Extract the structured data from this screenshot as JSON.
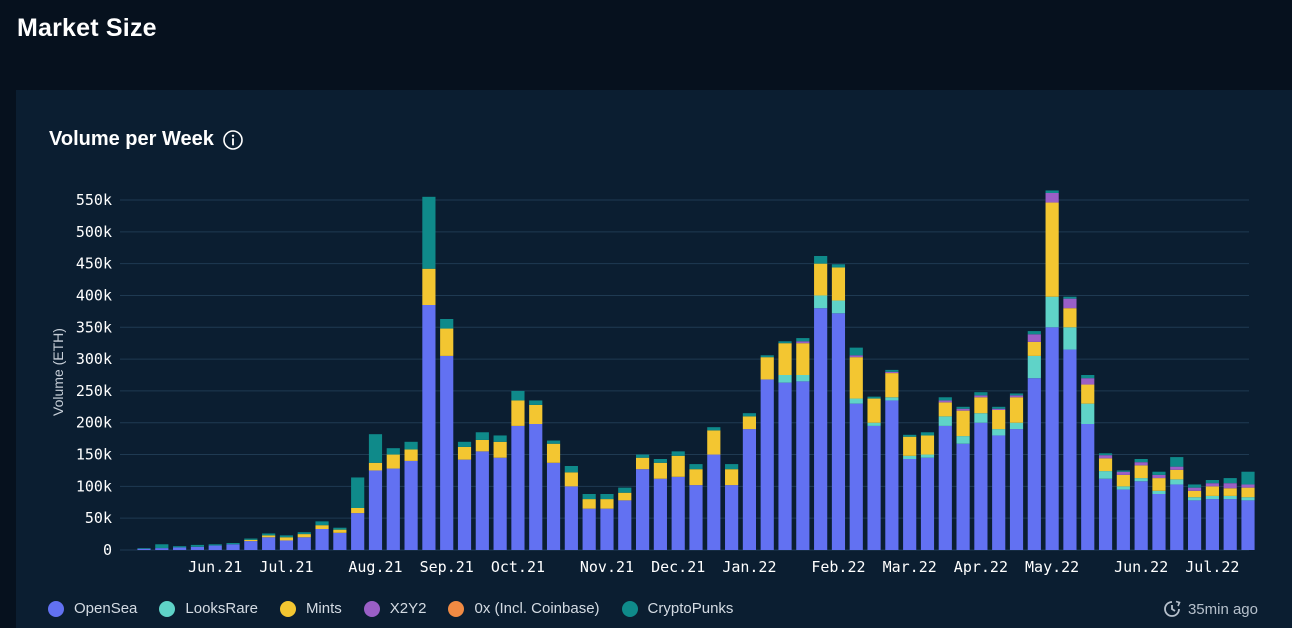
{
  "header": {
    "title": "Market Size"
  },
  "card": {
    "title": "Volume per Week",
    "updated": "35min ago"
  },
  "colors": {
    "background": "#06111e",
    "card": "#0b1e31",
    "grid": "#1f3a52"
  },
  "icons": {
    "info": "info-icon",
    "clock": "clock-refresh-icon"
  },
  "chart_data": {
    "type": "bar",
    "stacked": true,
    "title": "Volume per Week",
    "ylabel": "Volume (ETH)",
    "xlabel": "",
    "ylim": [
      0,
      560000
    ],
    "yticks": [
      0,
      50000,
      100000,
      150000,
      200000,
      250000,
      300000,
      350000,
      400000,
      450000,
      500000,
      550000
    ],
    "ytick_labels": [
      "0",
      "50k",
      "100k",
      "150k",
      "200k",
      "250k",
      "300k",
      "350k",
      "400k",
      "450k",
      "500k",
      "550k"
    ],
    "grid": true,
    "legend_position": "bottom-left",
    "month_labels": [
      {
        "label": "Jun.21",
        "week": 4
      },
      {
        "label": "Jul.21",
        "week": 8
      },
      {
        "label": "Aug.21",
        "week": 13
      },
      {
        "label": "Sep.21",
        "week": 17
      },
      {
        "label": "Oct.21",
        "week": 21
      },
      {
        "label": "Nov.21",
        "week": 26
      },
      {
        "label": "Dec.21",
        "week": 30
      },
      {
        "label": "Jan.22",
        "week": 34
      },
      {
        "label": "Feb.22",
        "week": 39
      },
      {
        "label": "Mar.22",
        "week": 43
      },
      {
        "label": "Apr.22",
        "week": 47
      },
      {
        "label": "May.22",
        "week": 51
      },
      {
        "label": "Jun.22",
        "week": 56
      },
      {
        "label": "Jul.22",
        "week": 60
      }
    ],
    "series": [
      {
        "name": "OpenSea",
        "color": "#6271f2",
        "values": [
          2000,
          3000,
          4000,
          5000,
          7000,
          9000,
          14000,
          20000,
          15000,
          20000,
          33000,
          27000,
          58000,
          125000,
          128000,
          140000,
          385000,
          305000,
          142000,
          155000,
          145000,
          195000,
          198000,
          137000,
          100000,
          65000,
          65000,
          78000,
          127000,
          112000,
          115000,
          102000,
          150000,
          102000,
          190000,
          268000,
          263000,
          265000,
          380000,
          372000,
          230000,
          195000,
          235000,
          143000,
          145000,
          195000,
          167000,
          200000,
          180000,
          190000,
          270000,
          350000,
          315000,
          198000,
          112000,
          95000,
          108000,
          88000,
          103000,
          78000,
          80000,
          80000,
          78000
        ]
      },
      {
        "name": "LooksRare",
        "color": "#5fd3c8",
        "values": [
          0,
          0,
          0,
          0,
          0,
          0,
          0,
          0,
          0,
          0,
          0,
          0,
          0,
          0,
          0,
          0,
          0,
          0,
          0,
          0,
          0,
          0,
          0,
          0,
          0,
          0,
          0,
          0,
          0,
          0,
          0,
          0,
          0,
          0,
          0,
          0,
          12000,
          10000,
          20000,
          20000,
          8000,
          5000,
          5000,
          5000,
          5000,
          15000,
          12000,
          15000,
          10000,
          10000,
          35000,
          48000,
          35000,
          32000,
          12000,
          5000,
          5000,
          5000,
          8000,
          5000,
          5000,
          5000,
          5000
        ]
      },
      {
        "name": "Mints",
        "color": "#f3c631",
        "values": [
          0,
          0,
          0,
          0,
          0,
          0,
          2000,
          3000,
          5000,
          5000,
          6000,
          5000,
          8000,
          12000,
          22000,
          18000,
          57000,
          43000,
          20000,
          18000,
          25000,
          40000,
          30000,
          30000,
          22000,
          15000,
          15000,
          12000,
          18000,
          25000,
          33000,
          25000,
          38000,
          25000,
          20000,
          35000,
          50000,
          50000,
          50000,
          52000,
          65000,
          38000,
          38000,
          30000,
          30000,
          22000,
          40000,
          25000,
          30000,
          40000,
          22000,
          148000,
          30000,
          30000,
          20000,
          18000,
          20000,
          20000,
          15000,
          10000,
          15000,
          12000,
          15000
        ]
      },
      {
        "name": "X2Y2",
        "color": "#9a5fc6",
        "values": [
          0,
          0,
          0,
          0,
          0,
          0,
          0,
          0,
          0,
          0,
          0,
          0,
          0,
          0,
          0,
          0,
          0,
          0,
          0,
          0,
          0,
          0,
          0,
          0,
          0,
          0,
          0,
          0,
          0,
          0,
          0,
          0,
          0,
          0,
          0,
          0,
          0,
          3000,
          0,
          0,
          3000,
          0,
          2000,
          0,
          0,
          3000,
          3000,
          3000,
          2000,
          3000,
          12000,
          15000,
          15000,
          10000,
          5000,
          5000,
          5000,
          5000,
          5000,
          5000,
          5000,
          8000,
          5000
        ]
      },
      {
        "name": "0x (Incl. Coinbase)",
        "color": "#f08a43",
        "values": [
          0,
          0,
          0,
          0,
          0,
          0,
          0,
          0,
          0,
          0,
          0,
          0,
          0,
          0,
          0,
          0,
          0,
          0,
          0,
          0,
          0,
          0,
          0,
          0,
          0,
          0,
          0,
          0,
          0,
          0,
          0,
          0,
          0,
          0,
          0,
          0,
          0,
          0,
          0,
          0,
          0,
          0,
          0,
          0,
          0,
          0,
          0,
          0,
          0,
          0,
          0,
          0,
          0,
          0,
          0,
          0,
          0,
          0,
          0,
          0,
          0,
          0,
          0
        ]
      },
      {
        "name": "CryptoPunks",
        "color": "#0f8a8a",
        "values": [
          1000,
          6000,
          2000,
          3000,
          2000,
          2000,
          2000,
          3000,
          3000,
          3000,
          6000,
          3000,
          48000,
          45000,
          10000,
          12000,
          113000,
          15000,
          8000,
          12000,
          10000,
          15000,
          7000,
          5000,
          10000,
          8000,
          8000,
          8000,
          5000,
          6000,
          7000,
          8000,
          5000,
          8000,
          5000,
          3000,
          3000,
          5000,
          12000,
          5000,
          12000,
          3000,
          3000,
          3000,
          5000,
          5000,
          3000,
          5000,
          3000,
          3000,
          5000,
          4000,
          3000,
          5000,
          3000,
          2000,
          5000,
          5000,
          15000,
          5000,
          5000,
          8000,
          20000
        ]
      }
    ]
  }
}
